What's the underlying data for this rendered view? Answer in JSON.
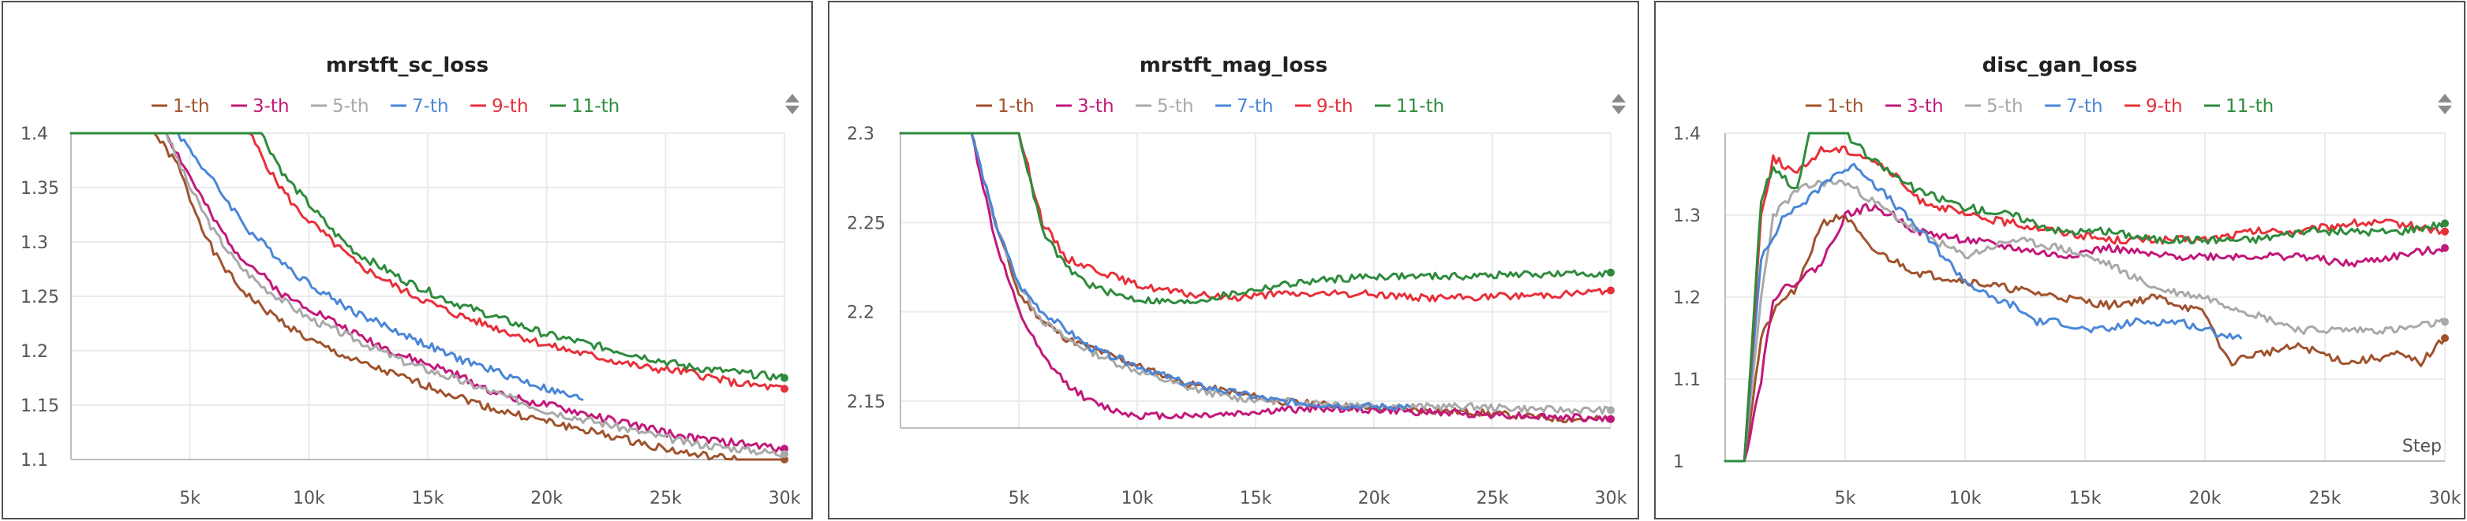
{
  "chart_data": [
    {
      "type": "line",
      "title": "mrstft_sc_loss",
      "x_tick_labels": [
        "5k",
        "10k",
        "15k",
        "20k",
        "25k",
        "30k"
      ],
      "x_ticks": [
        5000,
        10000,
        15000,
        20000,
        25000,
        30000
      ],
      "y_tick_labels": [
        "1.1",
        "1.15",
        "1.2",
        "1.25",
        "1.3",
        "1.35",
        "1.4"
      ],
      "y_ticks": [
        1.1,
        1.15,
        1.2,
        1.25,
        1.3,
        1.35,
        1.4
      ],
      "xlim": [
        0,
        30000
      ],
      "ylim": [
        1.1,
        1.4
      ],
      "grid": true,
      "legend_position": "top",
      "series": [
        {
          "name": "1-th",
          "color": "#a0522d",
          "x": [
            0,
            3500,
            4500,
            5000,
            6000,
            7000,
            8000,
            9000,
            10000,
            12000,
            14000,
            16000,
            18000,
            20000,
            22000,
            24000,
            26000,
            28000,
            30000
          ],
          "y": [
            1.4,
            1.4,
            1.37,
            1.34,
            1.29,
            1.26,
            1.24,
            1.225,
            1.21,
            1.19,
            1.175,
            1.16,
            1.145,
            1.135,
            1.125,
            1.115,
            1.105,
            1.1,
            1.1
          ]
        },
        {
          "name": "3-th",
          "color": "#c2187a",
          "x": [
            0,
            4000,
            5000,
            6000,
            7000,
            8000,
            9000,
            10000,
            12000,
            14000,
            16000,
            18000,
            20000,
            22000,
            24000,
            26000,
            28000,
            30000
          ],
          "y": [
            1.4,
            1.4,
            1.36,
            1.32,
            1.29,
            1.27,
            1.25,
            1.24,
            1.215,
            1.195,
            1.18,
            1.16,
            1.15,
            1.14,
            1.13,
            1.12,
            1.115,
            1.11
          ]
        },
        {
          "name": "5-th",
          "color": "#a9a9a9",
          "x": [
            0,
            4000,
            5000,
            6000,
            7000,
            8000,
            9000,
            10000,
            12000,
            14000,
            16000,
            18000,
            20000,
            22000,
            24000,
            26000,
            28000,
            30000
          ],
          "y": [
            1.4,
            1.4,
            1.35,
            1.31,
            1.28,
            1.26,
            1.245,
            1.23,
            1.21,
            1.19,
            1.175,
            1.16,
            1.145,
            1.135,
            1.125,
            1.115,
            1.11,
            1.105
          ]
        },
        {
          "name": "7-th",
          "color": "#4a86d8",
          "x": [
            0,
            4500,
            5500,
            6500,
            7500,
            8500,
            9500,
            10500,
            12000,
            14000,
            16000,
            18000,
            20000,
            21500
          ],
          "y": [
            1.4,
            1.4,
            1.37,
            1.34,
            1.31,
            1.29,
            1.27,
            1.255,
            1.235,
            1.215,
            1.195,
            1.18,
            1.165,
            1.155
          ]
        },
        {
          "name": "9-th",
          "color": "#e8303a",
          "x": [
            0,
            7500,
            8500,
            9500,
            10500,
            12000,
            14000,
            16000,
            18000,
            20000,
            22000,
            24000,
            26000,
            28000,
            30000
          ],
          "y": [
            1.4,
            1.4,
            1.36,
            1.33,
            1.31,
            1.28,
            1.255,
            1.235,
            1.22,
            1.205,
            1.195,
            1.185,
            1.18,
            1.17,
            1.165
          ]
        },
        {
          "name": "11-th",
          "color": "#2e8b3c",
          "x": [
            0,
            8000,
            9000,
            10000,
            11000,
            12000,
            14000,
            16000,
            18000,
            20000,
            22000,
            24000,
            26000,
            28000,
            30000
          ],
          "y": [
            1.4,
            1.4,
            1.36,
            1.335,
            1.31,
            1.29,
            1.265,
            1.245,
            1.23,
            1.215,
            1.205,
            1.195,
            1.185,
            1.18,
            1.175
          ]
        }
      ]
    },
    {
      "type": "line",
      "title": "mrstft_mag_loss",
      "x_tick_labels": [
        "5k",
        "10k",
        "15k",
        "20k",
        "25k",
        "30k"
      ],
      "x_ticks": [
        5000,
        10000,
        15000,
        20000,
        25000,
        30000
      ],
      "y_tick_labels": [
        "2.15",
        "2.2",
        "2.25",
        "2.3"
      ],
      "y_ticks": [
        2.15,
        2.2,
        2.25,
        2.3
      ],
      "xlim": [
        0,
        30000
      ],
      "ylim": [
        2.135,
        2.3
      ],
      "grid": true,
      "legend_position": "top",
      "series": [
        {
          "name": "1-th",
          "color": "#a0522d",
          "x": [
            0,
            3000,
            4000,
            5000,
            6000,
            7000,
            8000,
            9000,
            10000,
            12000,
            14000,
            16000,
            18000,
            20000,
            22000,
            24000,
            26000,
            28000,
            30000
          ],
          "y": [
            2.3,
            2.3,
            2.25,
            2.21,
            2.195,
            2.185,
            2.18,
            2.175,
            2.17,
            2.16,
            2.155,
            2.15,
            2.148,
            2.146,
            2.145,
            2.144,
            2.142,
            2.14,
            2.14
          ]
        },
        {
          "name": "3-th",
          "color": "#c2187a",
          "x": [
            0,
            3000,
            4000,
            5000,
            6000,
            7000,
            8000,
            9000,
            10000,
            12000,
            14000,
            16000,
            18000,
            20000,
            22000,
            24000,
            26000,
            28000,
            30000
          ],
          "y": [
            2.3,
            2.3,
            2.24,
            2.2,
            2.175,
            2.16,
            2.15,
            2.145,
            2.142,
            2.142,
            2.143,
            2.145,
            2.146,
            2.145,
            2.144,
            2.143,
            2.142,
            2.141,
            2.14
          ]
        },
        {
          "name": "5-th",
          "color": "#a9a9a9",
          "x": [
            0,
            3000,
            4000,
            5000,
            6000,
            7000,
            8000,
            9000,
            10000,
            12000,
            14000,
            16000,
            18000,
            20000,
            22000,
            24000,
            26000,
            28000,
            30000
          ],
          "y": [
            2.3,
            2.3,
            2.25,
            2.215,
            2.195,
            2.185,
            2.178,
            2.172,
            2.167,
            2.158,
            2.152,
            2.15,
            2.149,
            2.148,
            2.147,
            2.147,
            2.146,
            2.145,
            2.145
          ]
        },
        {
          "name": "7-th",
          "color": "#4a86d8",
          "x": [
            0,
            3000,
            4000,
            5000,
            6000,
            7000,
            8000,
            9000,
            10000,
            11000,
            12000,
            14000,
            16000,
            18000,
            20000,
            21500
          ],
          "y": [
            2.3,
            2.3,
            2.25,
            2.215,
            2.2,
            2.19,
            2.18,
            2.175,
            2.17,
            2.165,
            2.16,
            2.155,
            2.15,
            2.148,
            2.147,
            2.147
          ]
        },
        {
          "name": "9-th",
          "color": "#e8303a",
          "x": [
            0,
            5000,
            6000,
            7000,
            8000,
            9000,
            10000,
            12000,
            14000,
            16000,
            18000,
            20000,
            22000,
            24000,
            26000,
            28000,
            30000
          ],
          "y": [
            2.3,
            2.3,
            2.25,
            2.23,
            2.225,
            2.22,
            2.215,
            2.21,
            2.208,
            2.21,
            2.21,
            2.21,
            2.208,
            2.208,
            2.209,
            2.21,
            2.212
          ]
        },
        {
          "name": "11-th",
          "color": "#2e8b3c",
          "x": [
            0,
            5000,
            6000,
            7000,
            8000,
            9000,
            10000,
            12000,
            14000,
            16000,
            18000,
            20000,
            22000,
            24000,
            26000,
            28000,
            30000
          ],
          "y": [
            2.3,
            2.3,
            2.245,
            2.225,
            2.215,
            2.21,
            2.207,
            2.205,
            2.21,
            2.215,
            2.218,
            2.22,
            2.22,
            2.22,
            2.221,
            2.221,
            2.222
          ]
        }
      ]
    },
    {
      "type": "line",
      "title": "disc_gan_loss",
      "x_tick_labels": [
        "5k",
        "10k",
        "15k",
        "20k",
        "25k",
        "30k"
      ],
      "x_ticks": [
        5000,
        10000,
        15000,
        20000,
        25000,
        30000
      ],
      "y_tick_labels": [
        "1",
        "1.1",
        "1.2",
        "1.3",
        "1.4"
      ],
      "y_ticks": [
        1,
        1.1,
        1.2,
        1.3,
        1.4
      ],
      "xlim": [
        0,
        30000
      ],
      "ylim": [
        1.0,
        1.4
      ],
      "x_axis_label": "Step",
      "grid": true,
      "legend_position": "top",
      "series": [
        {
          "name": "1-th",
          "color": "#a0522d",
          "x": [
            0,
            800,
            1500,
            2000,
            2500,
            3000,
            3500,
            4000,
            5000,
            6000,
            8000,
            10000,
            12000,
            14000,
            16000,
            18000,
            20000,
            21000,
            22000,
            24000,
            26000,
            28000,
            29000,
            30000
          ],
          "y": [
            1.0,
            1.0,
            1.15,
            1.18,
            1.2,
            1.21,
            1.25,
            1.29,
            1.3,
            1.26,
            1.23,
            1.22,
            1.21,
            1.2,
            1.19,
            1.2,
            1.18,
            1.12,
            1.13,
            1.14,
            1.12,
            1.13,
            1.12,
            1.15
          ]
        },
        {
          "name": "3-th",
          "color": "#c2187a",
          "x": [
            0,
            800,
            1500,
            2000,
            3000,
            4000,
            5000,
            6000,
            7000,
            8000,
            10000,
            12000,
            14000,
            16000,
            18000,
            20000,
            22000,
            24000,
            26000,
            28000,
            30000
          ],
          "y": [
            1.0,
            1.0,
            1.1,
            1.2,
            1.22,
            1.24,
            1.3,
            1.31,
            1.3,
            1.28,
            1.27,
            1.26,
            1.25,
            1.26,
            1.25,
            1.25,
            1.25,
            1.25,
            1.24,
            1.25,
            1.26
          ]
        },
        {
          "name": "5-th",
          "color": "#a9a9a9",
          "x": [
            0,
            800,
            1500,
            2000,
            3000,
            4000,
            5000,
            6000,
            7000,
            8000,
            10000,
            12000,
            14000,
            16000,
            18000,
            20000,
            22000,
            24000,
            26000,
            28000,
            30000
          ],
          "y": [
            1.0,
            1.0,
            1.2,
            1.3,
            1.33,
            1.34,
            1.34,
            1.32,
            1.3,
            1.28,
            1.25,
            1.27,
            1.26,
            1.24,
            1.21,
            1.2,
            1.18,
            1.16,
            1.16,
            1.16,
            1.17
          ]
        },
        {
          "name": "7-th",
          "color": "#4a86d8",
          "x": [
            0,
            800,
            1500,
            2500,
            3500,
            4500,
            5500,
            6500,
            7500,
            8500,
            10000,
            11000,
            12000,
            13000,
            14000,
            15000,
            16000,
            17000,
            18000,
            19000,
            20000,
            21500
          ],
          "y": [
            1.0,
            1.0,
            1.25,
            1.3,
            1.32,
            1.35,
            1.36,
            1.33,
            1.3,
            1.27,
            1.22,
            1.2,
            1.19,
            1.17,
            1.17,
            1.16,
            1.16,
            1.17,
            1.17,
            1.17,
            1.16,
            1.15
          ]
        },
        {
          "name": "9-th",
          "color": "#e8303a",
          "x": [
            0,
            800,
            1500,
            2000,
            3000,
            4000,
            5000,
            6000,
            7000,
            8000,
            10000,
            12000,
            14000,
            16000,
            18000,
            20000,
            22000,
            24000,
            26000,
            28000,
            30000
          ],
          "y": [
            1.0,
            1.0,
            1.3,
            1.37,
            1.35,
            1.38,
            1.38,
            1.37,
            1.35,
            1.32,
            1.3,
            1.29,
            1.28,
            1.27,
            1.27,
            1.27,
            1.28,
            1.28,
            1.29,
            1.29,
            1.28
          ]
        },
        {
          "name": "11-th",
          "color": "#2e8b3c",
          "x": [
            0,
            800,
            1500,
            2000,
            3000,
            3500,
            4000,
            5000,
            6000,
            7000,
            8000,
            10000,
            12000,
            14000,
            16000,
            18000,
            20000,
            22000,
            24000,
            26000,
            28000,
            30000
          ],
          "y": [
            1.0,
            1.0,
            1.32,
            1.36,
            1.33,
            1.4,
            1.4,
            1.4,
            1.37,
            1.35,
            1.33,
            1.31,
            1.3,
            1.28,
            1.28,
            1.27,
            1.27,
            1.27,
            1.28,
            1.28,
            1.28,
            1.29
          ]
        }
      ]
    }
  ]
}
